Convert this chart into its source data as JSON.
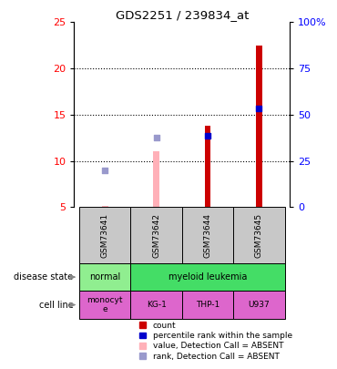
{
  "title": "GDS2251 / 239834_at",
  "samples": [
    "GSM73641",
    "GSM73642",
    "GSM73644",
    "GSM73645"
  ],
  "left_ylim": [
    5,
    25
  ],
  "right_ylim": [
    0,
    100
  ],
  "left_yticks": [
    5,
    10,
    15,
    20,
    25
  ],
  "right_yticks": [
    0,
    25,
    50,
    75,
    100
  ],
  "right_yticklabels": [
    "0",
    "25",
    "50",
    "75",
    "100%"
  ],
  "count_values": [
    5.15,
    11.0,
    13.8,
    22.5
  ],
  "count_absent": [
    true,
    true,
    false,
    false
  ],
  "rank_values": [
    9.0,
    12.5,
    12.7,
    15.7
  ],
  "rank_absent": [
    true,
    true,
    false,
    false
  ],
  "bar_width": 0.12,
  "disease_colors": {
    "normal": "#90EE90",
    "myeloid leukemia": "#44DD66"
  },
  "cell_color": "#DD66CC",
  "sample_box_color": "#C8C8C8",
  "color_count_present": "#CC0000",
  "color_count_absent": "#FFB0B8",
  "color_rank_present": "#0000CC",
  "color_rank_absent": "#9999CC",
  "legend_items": [
    {
      "label": "count",
      "color": "#CC0000"
    },
    {
      "label": "percentile rank within the sample",
      "color": "#0000CC"
    },
    {
      "label": "value, Detection Call = ABSENT",
      "color": "#FFB0B8"
    },
    {
      "label": "rank, Detection Call = ABSENT",
      "color": "#9999CC"
    }
  ]
}
